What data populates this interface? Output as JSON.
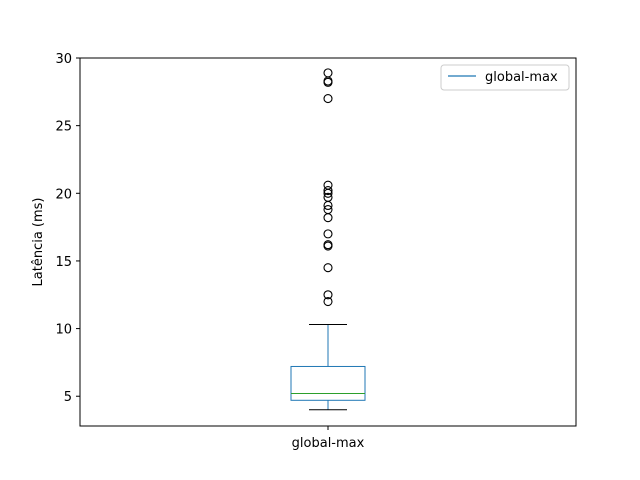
{
  "chart_data": {
    "type": "box",
    "ylabel": "Latência (ms)",
    "xlabel": "",
    "categories": [
      "global-max"
    ],
    "ylim": [
      2.8,
      30
    ],
    "yticks": [
      5,
      10,
      15,
      20,
      25,
      30
    ],
    "grid": false,
    "legend": {
      "position": "top-right",
      "entries": [
        "global-max"
      ]
    },
    "series": [
      {
        "name": "global-max",
        "whisker_low": 4.0,
        "q1": 4.7,
        "median": 5.2,
        "q3": 7.2,
        "whisker_high": 10.3,
        "outliers": [
          12.0,
          12.5,
          14.5,
          16.1,
          16.2,
          17.0,
          18.2,
          18.8,
          19.1,
          19.7,
          20.0,
          20.2,
          20.6,
          27.0,
          28.2,
          28.3,
          28.9
        ]
      }
    ],
    "colors": {
      "box": "#1f77b4",
      "median": "#2ca02c",
      "whisker": "#000000",
      "outlier": "#000000"
    }
  }
}
